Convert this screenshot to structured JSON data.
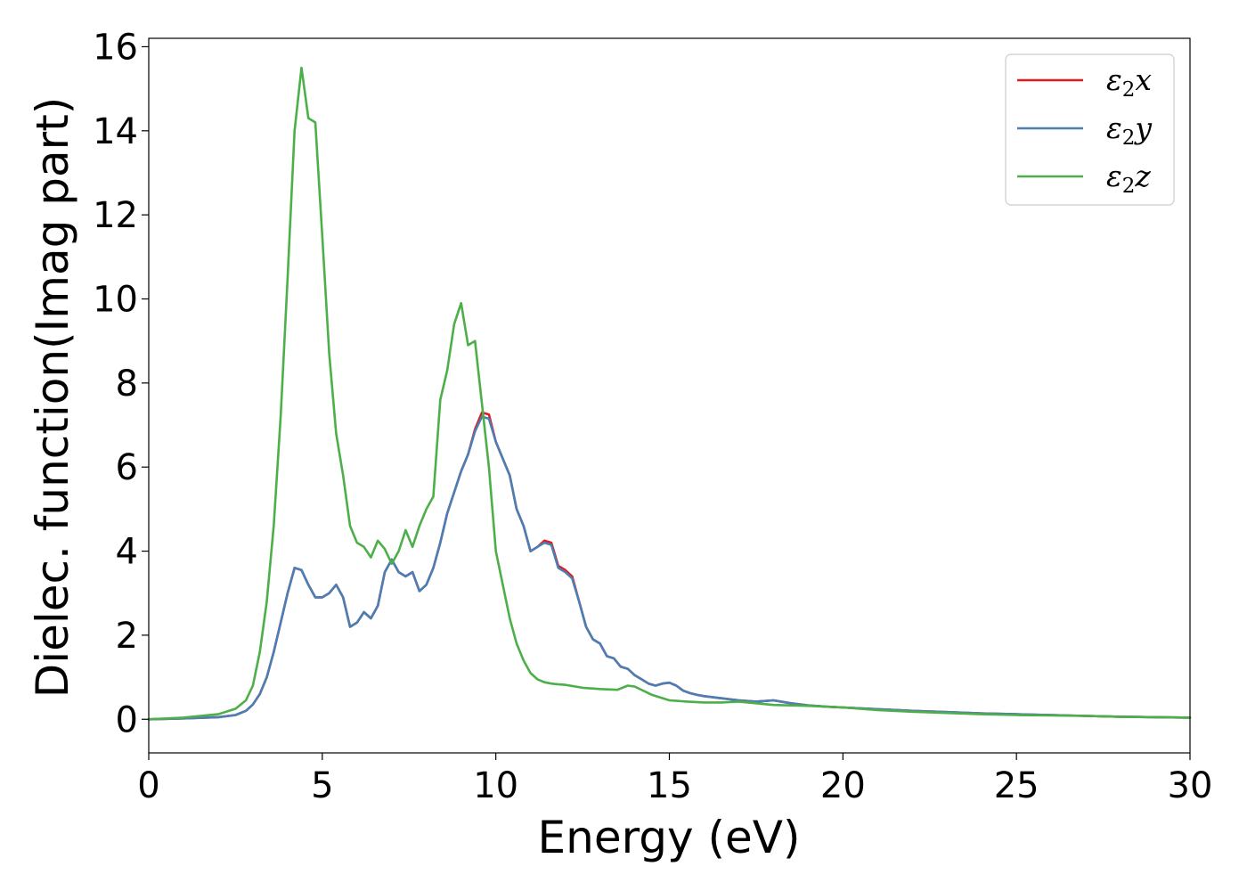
{
  "chart_data": {
    "type": "line",
    "xlabel": "Energy (eV)",
    "ylabel": "Dielec. function(Imag part)",
    "xlim": [
      0,
      30
    ],
    "ylim": [
      -0.8,
      16.2
    ],
    "xticks": [
      0,
      5,
      10,
      15,
      20,
      25,
      30
    ],
    "yticks": [
      0,
      2,
      4,
      6,
      8,
      10,
      12,
      14,
      16
    ],
    "grid": false,
    "legend_position": "top-right",
    "series": [
      {
        "name": "ε₂x",
        "legend_base": "ε",
        "legend_sub": "2",
        "legend_var": "x",
        "color": "#e41a1c",
        "x": [
          0,
          1,
          2,
          2.5,
          2.8,
          3.0,
          3.2,
          3.4,
          3.6,
          3.8,
          4.0,
          4.2,
          4.4,
          4.6,
          4.8,
          5.0,
          5.2,
          5.4,
          5.6,
          5.8,
          6.0,
          6.2,
          6.4,
          6.6,
          6.8,
          7.0,
          7.2,
          7.4,
          7.6,
          7.8,
          8.0,
          8.2,
          8.4,
          8.6,
          8.8,
          9.0,
          9.2,
          9.4,
          9.6,
          9.8,
          10.0,
          10.2,
          10.4,
          10.6,
          10.8,
          11.0,
          11.2,
          11.4,
          11.6,
          11.8,
          12.0,
          12.2,
          12.4,
          12.6,
          12.8,
          13.0,
          13.2,
          13.4,
          13.6,
          13.8,
          14.0,
          14.2,
          14.4,
          14.6,
          14.8,
          15.0,
          15.2,
          15.4,
          15.6,
          15.8,
          16.0,
          16.5,
          17.0,
          17.5,
          18.0,
          18.5,
          19.0,
          19.5,
          20.0,
          21.0,
          22.0,
          23.0,
          24.0,
          25.0,
          26.0,
          27.0,
          28.0,
          29.0,
          30.0
        ],
        "y": [
          0,
          0.02,
          0.05,
          0.1,
          0.2,
          0.35,
          0.6,
          1.0,
          1.6,
          2.3,
          3.0,
          3.6,
          3.55,
          3.2,
          2.9,
          2.9,
          3.0,
          3.2,
          2.9,
          2.2,
          2.3,
          2.55,
          2.4,
          2.7,
          3.5,
          3.8,
          3.5,
          3.4,
          3.5,
          3.05,
          3.2,
          3.6,
          4.2,
          4.9,
          5.4,
          5.9,
          6.3,
          6.9,
          7.3,
          7.25,
          6.6,
          6.2,
          5.8,
          5.0,
          4.6,
          4.0,
          4.1,
          4.25,
          4.2,
          3.65,
          3.55,
          3.4,
          2.8,
          2.2,
          1.9,
          1.8,
          1.5,
          1.45,
          1.25,
          1.2,
          1.05,
          0.95,
          0.85,
          0.8,
          0.85,
          0.87,
          0.8,
          0.68,
          0.62,
          0.58,
          0.55,
          0.5,
          0.45,
          0.42,
          0.45,
          0.38,
          0.33,
          0.3,
          0.28,
          0.24,
          0.2,
          0.17,
          0.14,
          0.12,
          0.1,
          0.08,
          0.06,
          0.05,
          0.04
        ]
      },
      {
        "name": "ε₂y",
        "legend_base": "ε",
        "legend_sub": "2",
        "legend_var": "y",
        "color": "#4a7fb5",
        "x": [
          0,
          1,
          2,
          2.5,
          2.8,
          3.0,
          3.2,
          3.4,
          3.6,
          3.8,
          4.0,
          4.2,
          4.4,
          4.6,
          4.8,
          5.0,
          5.2,
          5.4,
          5.6,
          5.8,
          6.0,
          6.2,
          6.4,
          6.6,
          6.8,
          7.0,
          7.2,
          7.4,
          7.6,
          7.8,
          8.0,
          8.2,
          8.4,
          8.6,
          8.8,
          9.0,
          9.2,
          9.4,
          9.6,
          9.8,
          10.0,
          10.2,
          10.4,
          10.6,
          10.8,
          11.0,
          11.2,
          11.4,
          11.6,
          11.8,
          12.0,
          12.2,
          12.4,
          12.6,
          12.8,
          13.0,
          13.2,
          13.4,
          13.6,
          13.8,
          14.0,
          14.2,
          14.4,
          14.6,
          14.8,
          15.0,
          15.2,
          15.4,
          15.6,
          15.8,
          16.0,
          16.5,
          17.0,
          17.5,
          18.0,
          18.5,
          19.0,
          19.5,
          20.0,
          21.0,
          22.0,
          23.0,
          24.0,
          25.0,
          26.0,
          27.0,
          28.0,
          29.0,
          30.0
        ],
        "y": [
          0,
          0.02,
          0.05,
          0.1,
          0.2,
          0.35,
          0.6,
          1.0,
          1.6,
          2.3,
          3.0,
          3.6,
          3.55,
          3.2,
          2.9,
          2.9,
          3.0,
          3.2,
          2.9,
          2.2,
          2.3,
          2.55,
          2.4,
          2.7,
          3.5,
          3.8,
          3.5,
          3.4,
          3.5,
          3.05,
          3.2,
          3.6,
          4.2,
          4.9,
          5.4,
          5.9,
          6.3,
          6.85,
          7.2,
          7.15,
          6.6,
          6.2,
          5.8,
          5.0,
          4.6,
          4.0,
          4.1,
          4.2,
          4.15,
          3.6,
          3.5,
          3.35,
          2.8,
          2.2,
          1.9,
          1.8,
          1.5,
          1.45,
          1.25,
          1.2,
          1.05,
          0.95,
          0.85,
          0.8,
          0.85,
          0.87,
          0.8,
          0.68,
          0.62,
          0.58,
          0.55,
          0.5,
          0.45,
          0.42,
          0.45,
          0.38,
          0.33,
          0.3,
          0.28,
          0.24,
          0.2,
          0.17,
          0.14,
          0.12,
          0.1,
          0.08,
          0.06,
          0.05,
          0.04
        ]
      },
      {
        "name": "ε₂z",
        "legend_base": "ε",
        "legend_sub": "2",
        "legend_var": "z",
        "color": "#4daf4a",
        "x": [
          0,
          1,
          2,
          2.5,
          2.8,
          3.0,
          3.2,
          3.4,
          3.6,
          3.8,
          4.0,
          4.2,
          4.4,
          4.6,
          4.8,
          5.0,
          5.2,
          5.4,
          5.6,
          5.8,
          6.0,
          6.2,
          6.4,
          6.6,
          6.8,
          7.0,
          7.2,
          7.4,
          7.6,
          7.8,
          8.0,
          8.2,
          8.4,
          8.6,
          8.8,
          9.0,
          9.2,
          9.4,
          9.6,
          9.8,
          10.0,
          10.2,
          10.4,
          10.6,
          10.8,
          11.0,
          11.2,
          11.4,
          11.6,
          11.8,
          12.0,
          12.5,
          13.0,
          13.5,
          13.8,
          14.0,
          14.5,
          15.0,
          15.5,
          16.0,
          16.5,
          17.0,
          17.5,
          18.0,
          18.5,
          19.0,
          19.5,
          20.0,
          21.0,
          22.0,
          23.0,
          24.0,
          25.0,
          26.0,
          27.0,
          28.0,
          29.0,
          30.0
        ],
        "y": [
          0,
          0.04,
          0.12,
          0.25,
          0.45,
          0.8,
          1.6,
          2.8,
          4.6,
          7.2,
          10.5,
          14.0,
          15.5,
          14.3,
          14.2,
          11.5,
          8.7,
          6.8,
          5.8,
          4.6,
          4.2,
          4.1,
          3.85,
          4.25,
          4.05,
          3.7,
          4.0,
          4.5,
          4.1,
          4.6,
          5.0,
          5.3,
          7.6,
          8.3,
          9.4,
          9.9,
          8.9,
          9.0,
          7.5,
          6.0,
          4.0,
          3.2,
          2.4,
          1.8,
          1.4,
          1.1,
          0.95,
          0.88,
          0.85,
          0.83,
          0.82,
          0.75,
          0.72,
          0.7,
          0.8,
          0.78,
          0.58,
          0.45,
          0.42,
          0.4,
          0.4,
          0.42,
          0.38,
          0.34,
          0.33,
          0.32,
          0.3,
          0.28,
          0.22,
          0.18,
          0.15,
          0.12,
          0.1,
          0.09,
          0.08,
          0.06,
          0.05,
          0.04
        ]
      }
    ]
  }
}
